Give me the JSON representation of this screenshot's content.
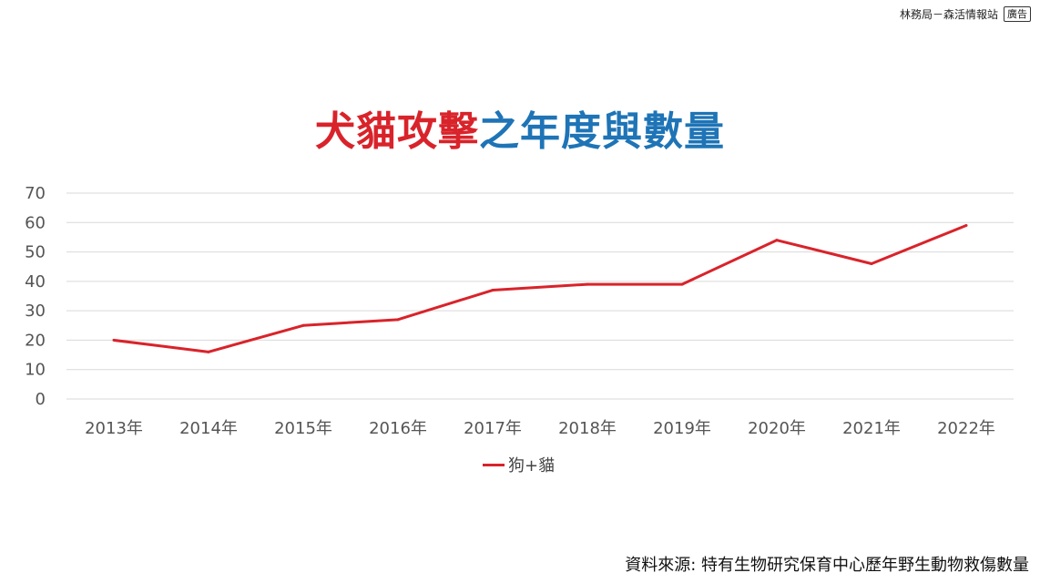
{
  "header": {
    "credit": "林務局－森活情報站",
    "ad_label": "廣告"
  },
  "title": {
    "part_a": "犬貓攻擊",
    "part_b": "之年度與數量"
  },
  "chart_data": {
    "type": "line",
    "categories": [
      "2013年",
      "2014年",
      "2015年",
      "2016年",
      "2017年",
      "2018年",
      "2019年",
      "2020年",
      "2021年",
      "2022年"
    ],
    "series": [
      {
        "name": "狗+貓",
        "values": [
          20,
          16,
          25,
          27,
          37,
          39,
          39,
          54,
          46,
          59
        ],
        "color": "#d9232a"
      }
    ],
    "ylim": [
      0,
      70
    ],
    "yticks": [
      0,
      10,
      20,
      30,
      40,
      50,
      60,
      70
    ],
    "grid": true,
    "legend_position": "bottom"
  },
  "source": "資料來源: 特有生物研究保育中心歷年野生動物救傷數量"
}
